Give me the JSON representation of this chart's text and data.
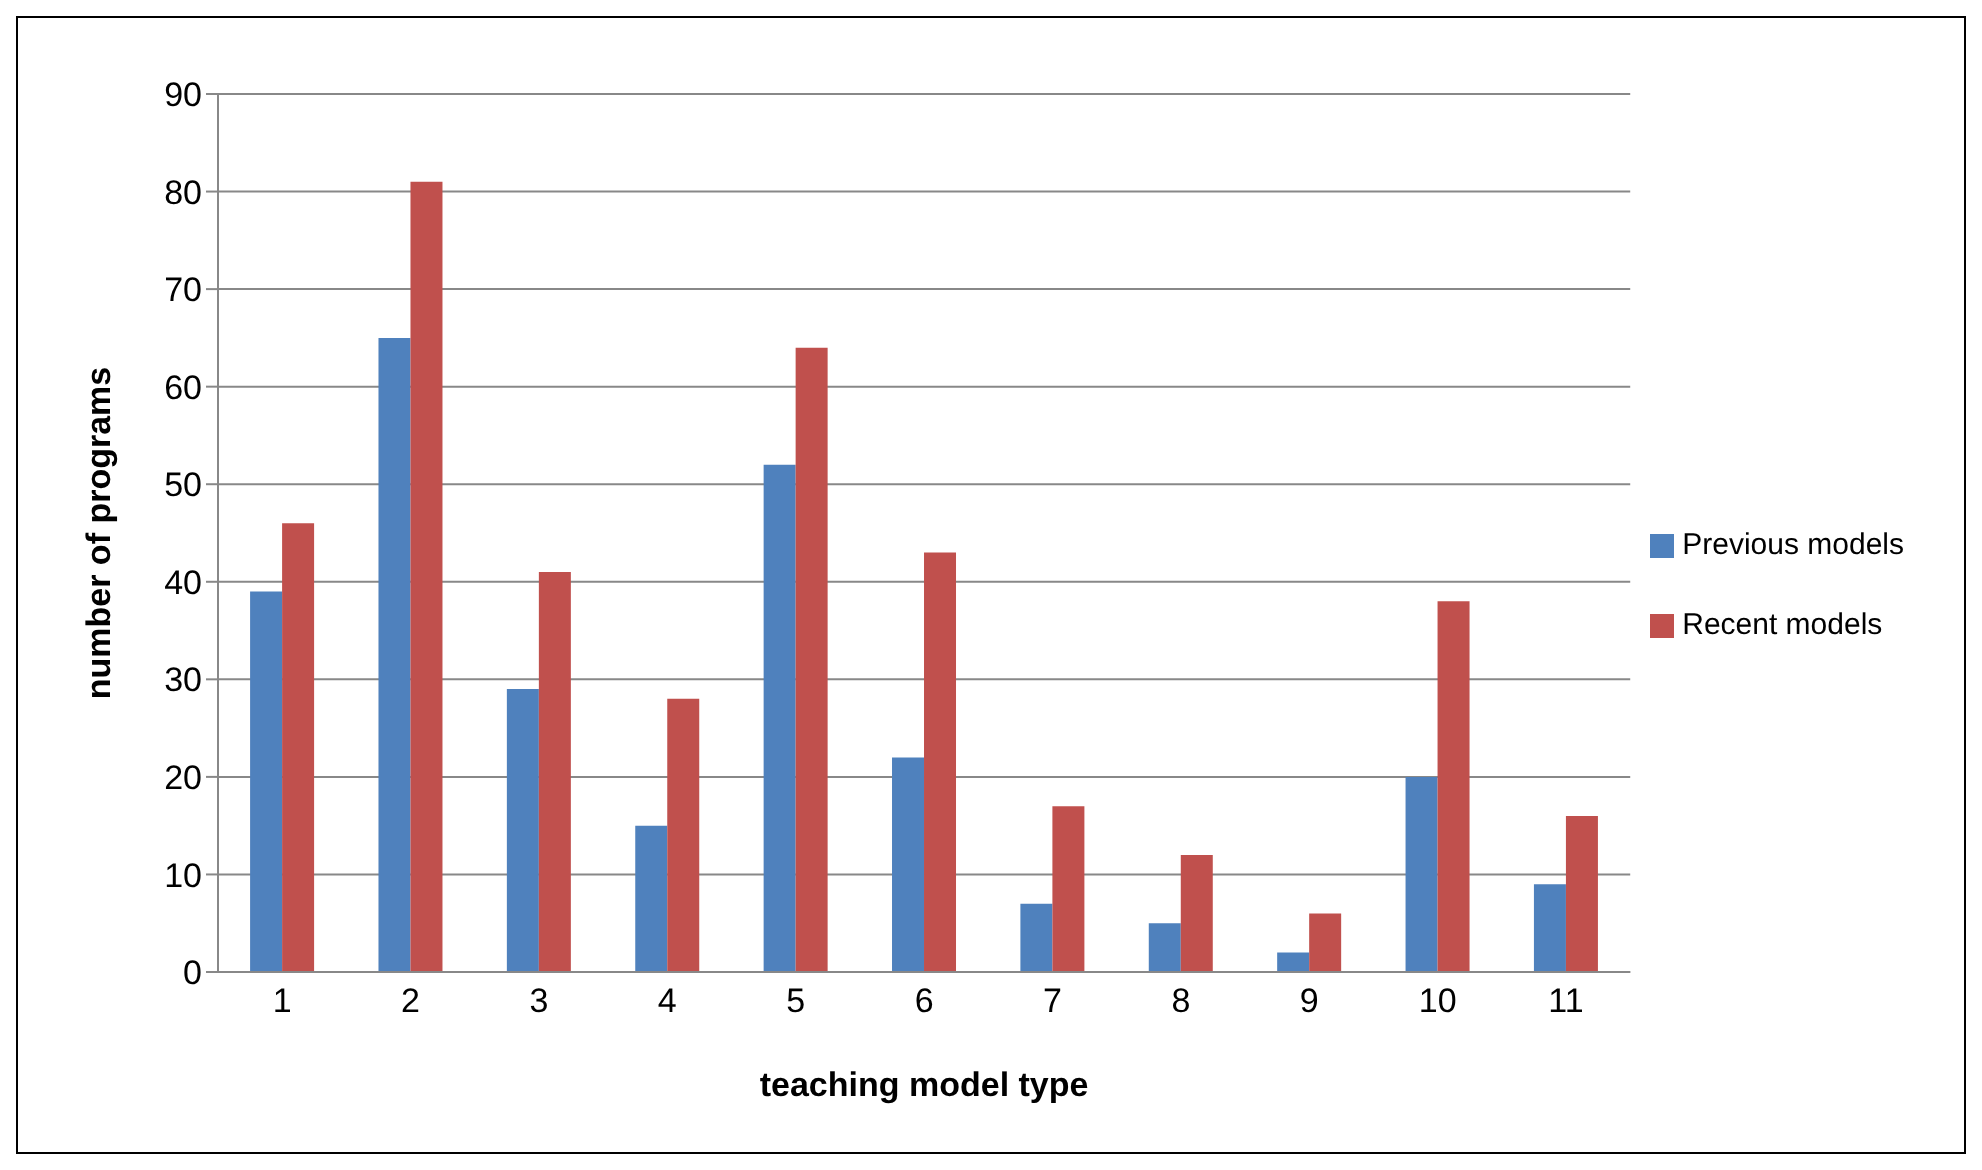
{
  "chart_data": {
    "type": "bar",
    "xlabel": "teaching model type",
    "ylabel": "number of programs",
    "categories": [
      "1",
      "2",
      "3",
      "4",
      "5",
      "6",
      "7",
      "8",
      "9",
      "10",
      "11"
    ],
    "series": [
      {
        "name": "Previous models",
        "color": "#4f81bd",
        "values": [
          39,
          65,
          29,
          15,
          52,
          22,
          7,
          5,
          2,
          20,
          9
        ]
      },
      {
        "name": "Recent models",
        "color": "#c0504d",
        "values": [
          46,
          81,
          41,
          28,
          64,
          43,
          17,
          12,
          6,
          38,
          16
        ]
      }
    ],
    "ylim": [
      0,
      90
    ],
    "yticks": [
      0,
      10,
      20,
      30,
      40,
      50,
      60,
      70,
      80,
      90
    ],
    "grid": "y",
    "legend": "right"
  }
}
